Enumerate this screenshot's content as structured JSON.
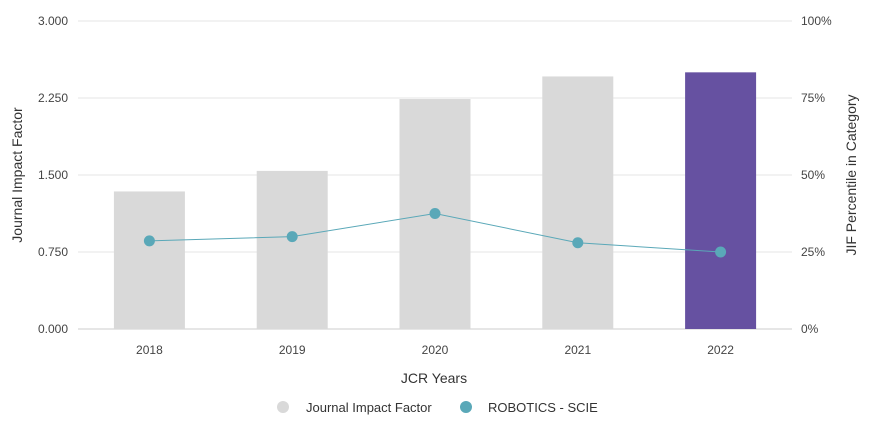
{
  "chart_data": {
    "type": "bar",
    "categories": [
      "2018",
      "2019",
      "2020",
      "2021",
      "2022"
    ],
    "xlabel": "JCR Years",
    "ylabel": "Journal Impact Factor",
    "y2label": "JIF Percentile in Category",
    "ylim": [
      0,
      3.0
    ],
    "yticks": [
      "0.000",
      "0.750",
      "1.500",
      "2.250",
      "3.000"
    ],
    "y2lim": [
      0,
      100
    ],
    "y2ticks": [
      "0%",
      "25%",
      "50%",
      "75%",
      "100%"
    ],
    "grid": true,
    "legend_position": "bottom-center",
    "series": [
      {
        "name": "Journal Impact Factor",
        "type": "bar",
        "axis": "left",
        "values": [
          1.34,
          1.54,
          2.24,
          2.46,
          2.5
        ],
        "colors": [
          "#d9d9d9",
          "#d9d9d9",
          "#d9d9d9",
          "#d9d9d9",
          "#6651a1"
        ]
      },
      {
        "name": "ROBOTICS - SCIE",
        "type": "line",
        "axis": "right",
        "values": [
          28.6,
          30.0,
          37.5,
          28.0,
          25.0
        ],
        "color": "#5aa8b8"
      }
    ],
    "legend_colors": [
      "#d9d9d9",
      "#5aa8b8"
    ]
  }
}
